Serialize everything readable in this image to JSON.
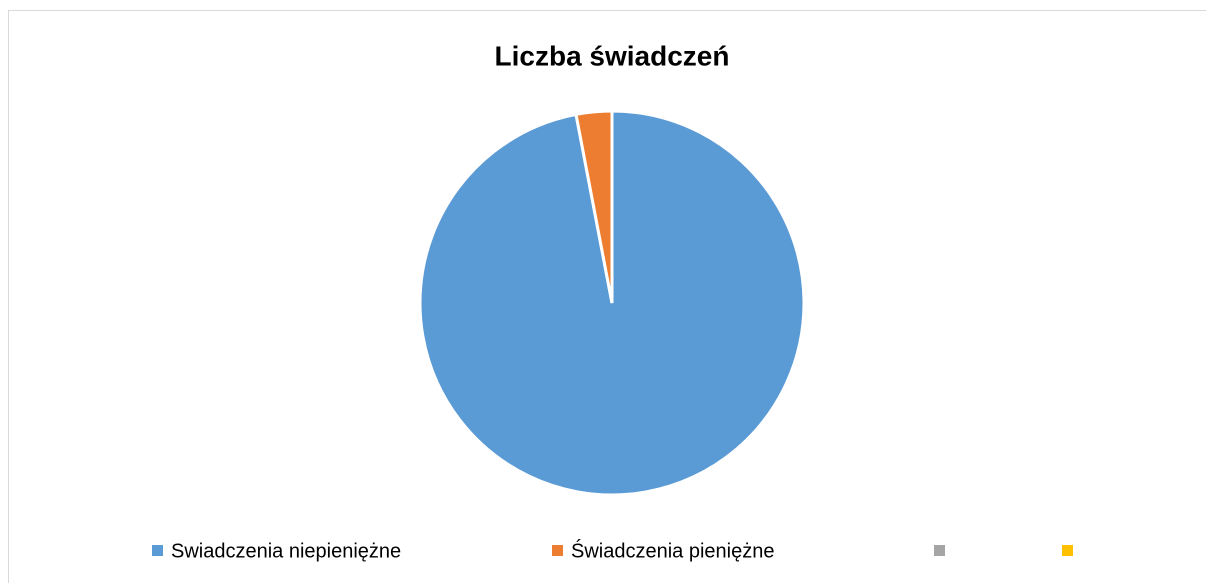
{
  "chart_data": {
    "type": "pie",
    "title": "Liczba świadczeń",
    "categories": [
      "Swiadczenia niepieniężne",
      "Świadczenia pieniężne",
      null,
      null
    ],
    "values": [
      97,
      3,
      0,
      0
    ],
    "colors": [
      "#5b9bd5",
      "#ed7d31",
      "#a5a5a5",
      "#ffc000"
    ],
    "legend": "bottom"
  }
}
